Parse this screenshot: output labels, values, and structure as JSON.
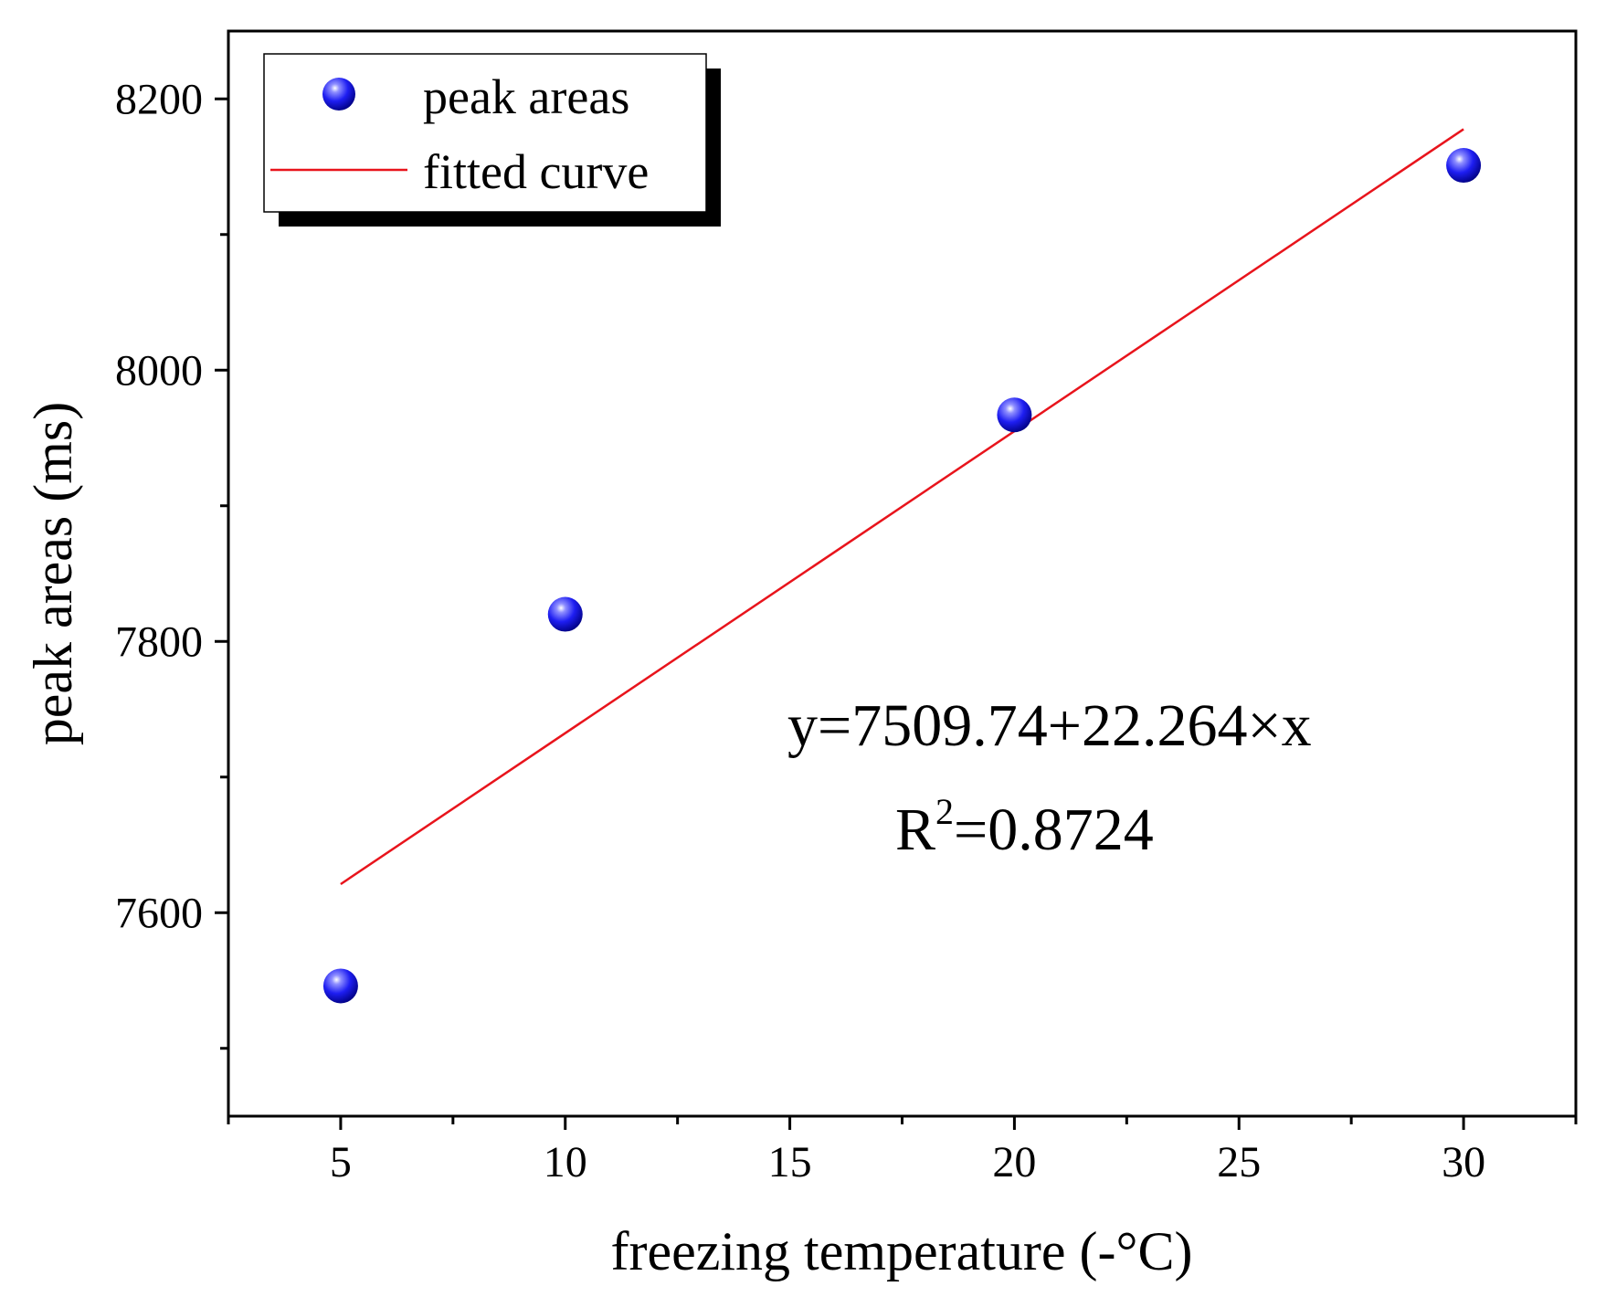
{
  "chart_data": {
    "type": "scatter",
    "xlabel": "freezing temperature (-°C)",
    "ylabel": "peak areas (ms)",
    "xlim": [
      2.5,
      32.5
    ],
    "ylim": [
      7450,
      8250
    ],
    "x_ticks": [
      5,
      10,
      15,
      20,
      25,
      30
    ],
    "x_minor_ticks": [
      2.5,
      7.5,
      12.5,
      17.5,
      22.5,
      27.5,
      32.5
    ],
    "y_ticks": [
      7600,
      7800,
      8000,
      8200
    ],
    "y_minor_ticks": [
      7500,
      7700,
      7900,
      8100
    ],
    "series": [
      {
        "name": "peak areas",
        "kind": "scatter",
        "color": "#1010ee",
        "x": [
          5,
          10,
          20,
          30
        ],
        "y": [
          7546,
          7820,
          7967,
          8151
        ]
      },
      {
        "name": "fitted curve",
        "kind": "line",
        "color": "#e8141c",
        "intercept": 7509.74,
        "slope": 22.264,
        "x_range": [
          5,
          30
        ]
      }
    ],
    "legend": {
      "position": "top-left",
      "entries": [
        "peak areas",
        "fitted curve"
      ]
    },
    "annotation": {
      "equation": "y=7509.74+22.264×x",
      "r2_prefix": "R",
      "r2_superscript": "2",
      "r2_value": "=0.8724"
    }
  }
}
